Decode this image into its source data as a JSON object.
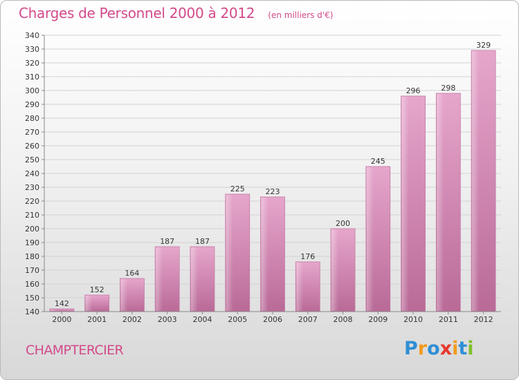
{
  "title": "Charges de Personnel 2000 à 2012",
  "subtitle": "(en milliers d'€)",
  "location": "CHAMPTERCIER",
  "logo": {
    "text": "Proxiti",
    "letters": [
      {
        "ch": "P",
        "color": "#2f8fd5"
      },
      {
        "ch": "r",
        "color": "#f29a1d"
      },
      {
        "ch": "o",
        "color": "#2f8fd5"
      },
      {
        "ch": "x",
        "color": "#e8372c"
      },
      {
        "ch": "i",
        "color": "#f29a1d"
      },
      {
        "ch": "t",
        "color": "#2f8fd5"
      },
      {
        "ch": "i",
        "color": "#7fbf2a"
      }
    ]
  },
  "chart_data": {
    "type": "bar",
    "title": "Charges de Personnel 2000 à 2012",
    "subtitle": "(en milliers d'€)",
    "categories": [
      "2000",
      "2001",
      "2002",
      "2003",
      "2004",
      "2005",
      "2006",
      "2007",
      "2008",
      "2009",
      "2010",
      "2011",
      "2012"
    ],
    "values": [
      142,
      152,
      164,
      187,
      187,
      225,
      223,
      176,
      200,
      245,
      296,
      298,
      329
    ],
    "ylim": [
      140,
      340
    ],
    "ytick_step": 10,
    "grid": true,
    "bar_color": "#d783b3",
    "data_labels": true
  }
}
